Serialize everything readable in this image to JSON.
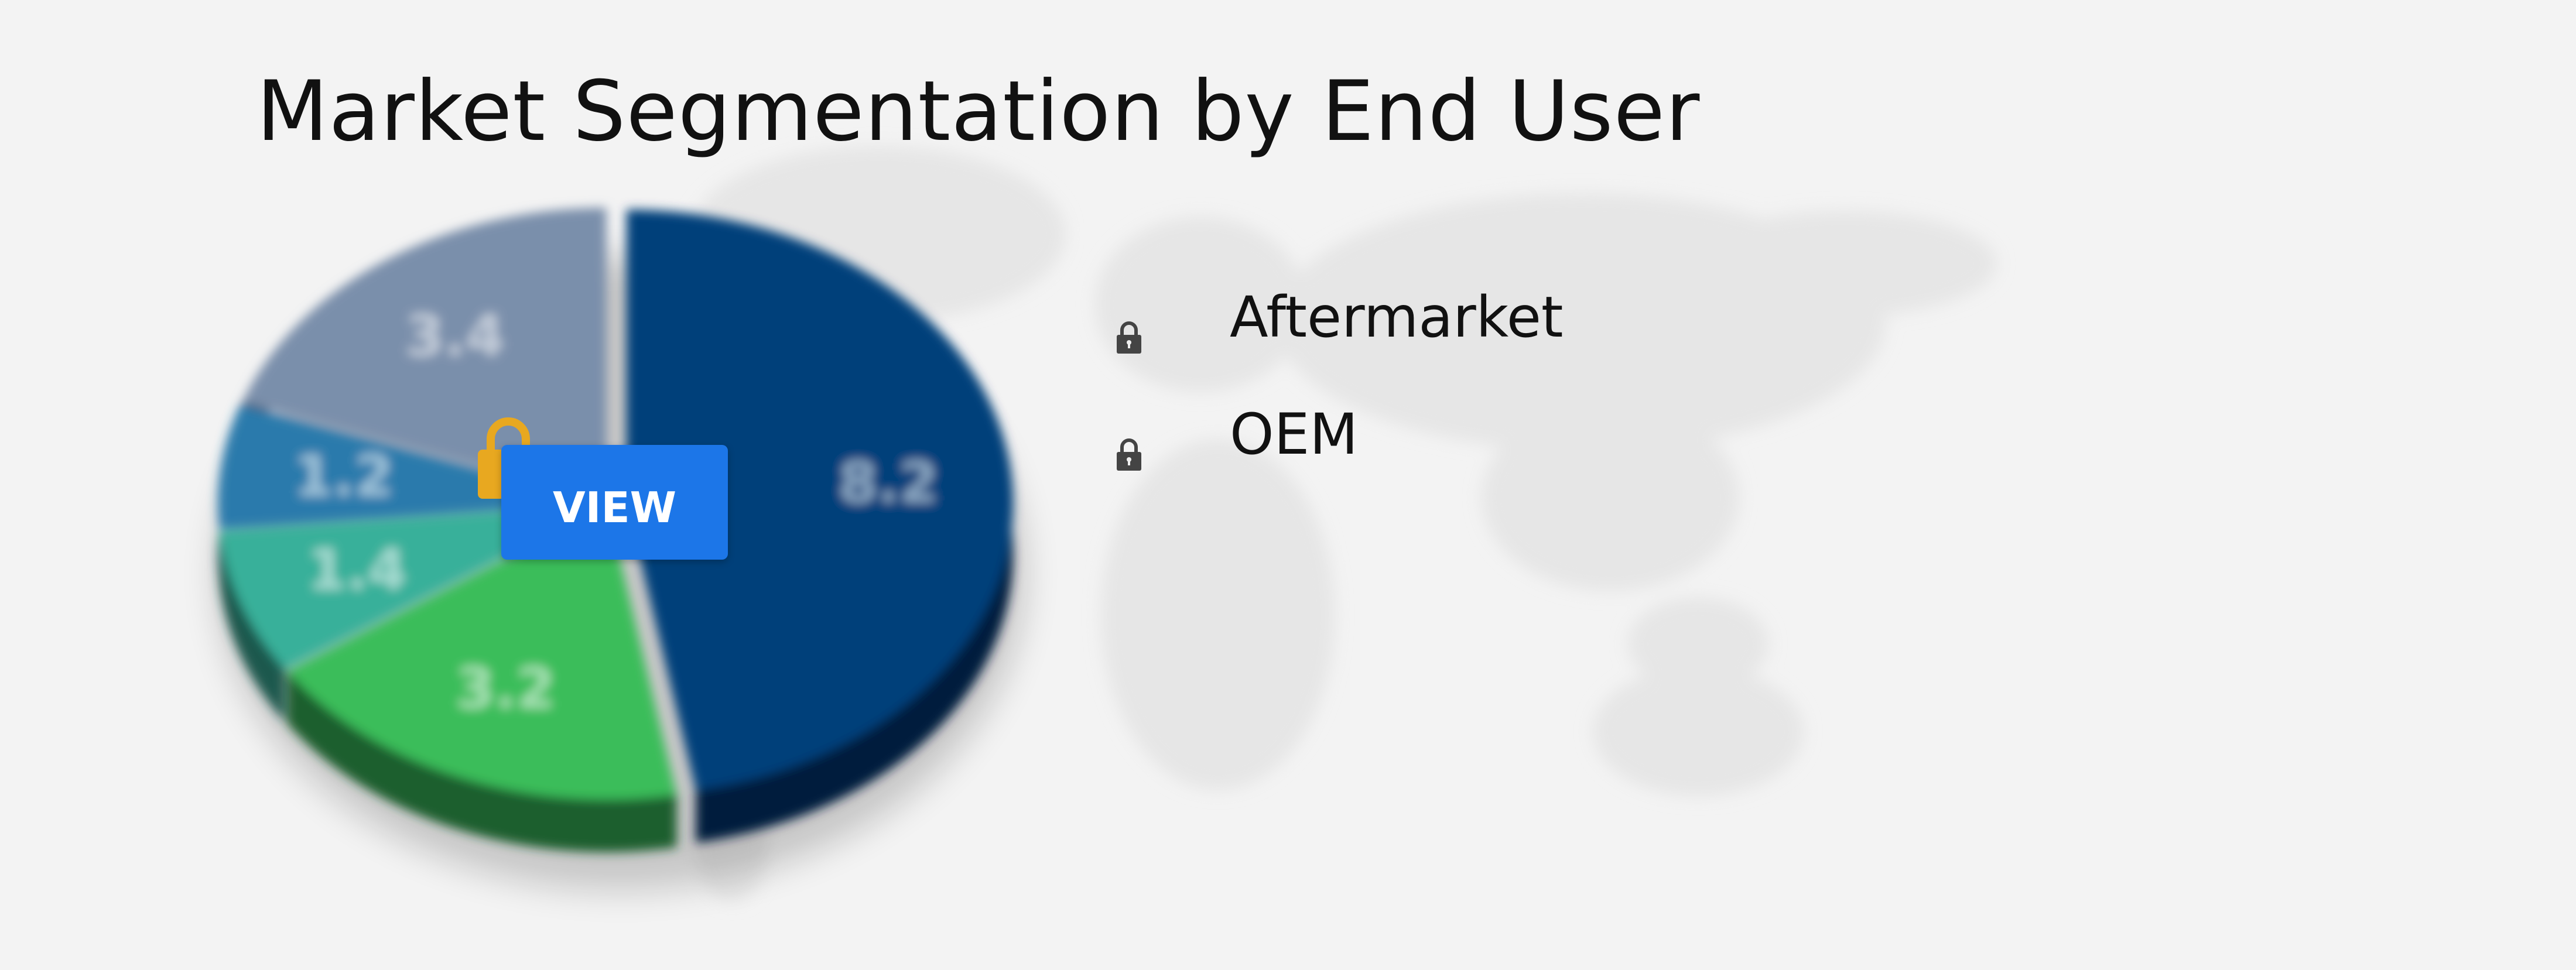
{
  "chart_data": {
    "type": "pie",
    "title": "Market Segmentation by End User",
    "slices": [
      {
        "label": "8.2",
        "value": 8.2,
        "color": "#003f7a"
      },
      {
        "label": "3.2",
        "value": 3.2,
        "color": "#3bbd5a"
      },
      {
        "label": "1.4",
        "value": 1.4,
        "color": "#38b09a"
      },
      {
        "label": "1.2",
        "value": 1.2,
        "color": "#2a7aac"
      },
      {
        "label": "3.4",
        "value": 3.4,
        "color": "#7a8fab"
      }
    ],
    "legend": [
      "Aftermarket",
      "OEM"
    ],
    "legend_placement": "right",
    "blurred": true
  },
  "overlay": {
    "button_label": "VIEW",
    "lock_color": "#e8a820",
    "button_color": "#1c76e8"
  },
  "legend_icon": "lock-icon"
}
